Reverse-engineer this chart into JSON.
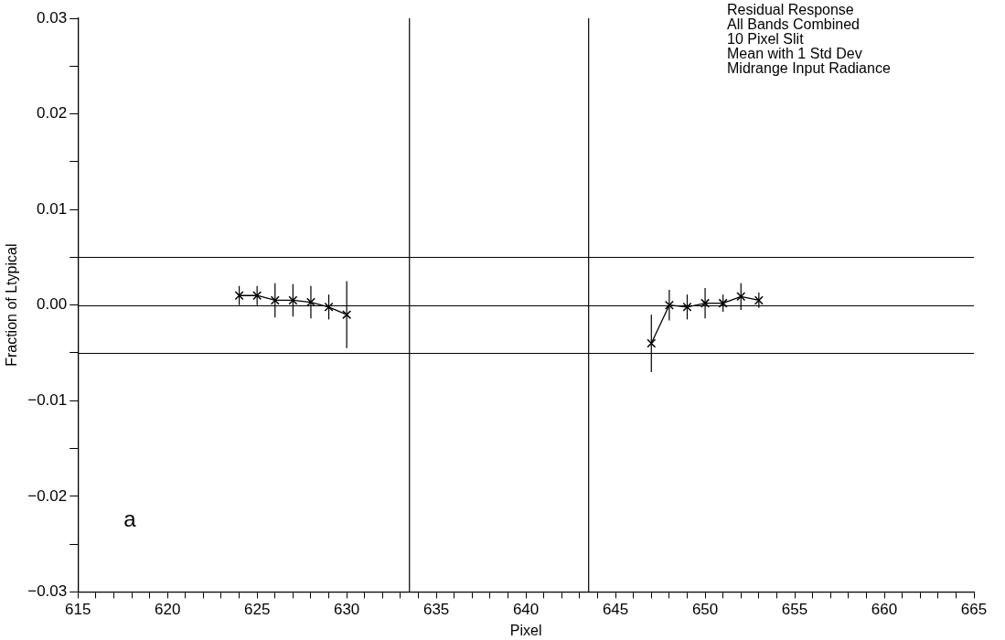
{
  "chart_data": {
    "type": "line",
    "xlabel": "Pixel",
    "ylabel": "Fraction of Ltypical",
    "annotations": [
      "Residual Response",
      "All Bands Combined",
      "10 Pixel Slit",
      "Mean with 1 Std Dev",
      "Midrange Input Radiance",
      "a"
    ],
    "series": [
      {
        "color": "#000000",
        "x": [
          624,
          625,
          626,
          627,
          628,
          629,
          630
        ],
        "values": [
          0.001,
          0.001,
          0.0005,
          0.0005,
          0.0003,
          -0.0002,
          -0.001
        ],
        "errors": [
          0.001,
          0.001,
          0.0018,
          0.0017,
          0.0017,
          0.0013,
          0.0035
        ]
      },
      {
        "color": "#000000",
        "x": [
          647,
          648,
          649,
          650,
          651,
          652,
          653
        ],
        "values": [
          -0.004,
          0.0,
          -0.0002,
          0.0002,
          0.0002,
          0.0009,
          0.0005
        ],
        "errors": [
          0.003,
          0.0016,
          0.0013,
          0.0016,
          0.0009,
          0.0014,
          0.0008
        ]
      }
    ],
    "marker": "cross",
    "line_style": "solid",
    "grid": false,
    "legend": false,
    "xlim": [
      615,
      665
    ],
    "ylim": [
      -0.03,
      0.03
    ],
    "xticks": [
      615,
      {
        "value": 616,
        "label": null
      },
      {
        "value": 617,
        "label": null
      },
      {
        "value": 618,
        "label": null
      },
      {
        "value": 619,
        "label": null
      },
      620,
      {
        "value": 621,
        "label": null
      },
      {
        "value": 622,
        "label": null
      },
      {
        "value": 623,
        "label": null
      },
      {
        "value": 624,
        "label": null
      },
      625,
      {
        "value": 626,
        "label": null
      },
      {
        "value": 627,
        "label": null
      },
      {
        "value": 628,
        "label": null
      },
      {
        "value": 629,
        "label": null
      },
      630,
      {
        "value": 631,
        "label": null
      },
      {
        "value": 632,
        "label": null
      },
      {
        "value": 633,
        "label": null
      },
      {
        "value": 634,
        "label": null
      },
      635,
      {
        "value": 636,
        "label": null
      },
      {
        "value": 637,
        "label": null
      },
      {
        "value": 638,
        "label": null
      },
      {
        "value": 639,
        "label": null
      },
      640,
      {
        "value": 641,
        "label": null
      },
      {
        "value": 642,
        "label": null
      },
      {
        "value": 643,
        "label": null
      },
      {
        "value": 644,
        "label": null
      },
      645,
      {
        "value": 646,
        "label": null
      },
      {
        "value": 647,
        "label": null
      },
      {
        "value": 648,
        "label": null
      },
      {
        "value": 649,
        "label": null
      },
      650,
      {
        "value": 651,
        "label": null
      },
      {
        "value": 652,
        "label": null
      },
      {
        "value": 653,
        "label": null
      },
      {
        "value": 654,
        "label": null
      },
      655,
      {
        "value": 656,
        "label": null
      },
      {
        "value": 657,
        "label": null
      },
      {
        "value": 658,
        "label": null
      },
      {
        "value": 659,
        "label": null
      },
      660,
      {
        "value": 661,
        "label": null
      },
      {
        "value": 662,
        "label": null
      },
      {
        "value": 663,
        "label": null
      },
      {
        "value": 664,
        "label": null
      },
      665
    ],
    "yticks": [
      {
        "value": -0.03,
        "label": "−0.03"
      },
      {
        "value": -0.025,
        "label": null
      },
      {
        "value": -0.02,
        "label": "−0.02"
      },
      {
        "value": -0.015,
        "label": null
      },
      {
        "value": -0.01,
        "label": "−0.01"
      },
      {
        "value": -0.005,
        "label": null
      },
      {
        "value": 0,
        "label": "0.00"
      },
      {
        "value": 0.005,
        "label": null
      },
      0.01,
      {
        "value": 0.015,
        "label": null
      },
      0.02,
      {
        "value": 0.025,
        "label": null
      },
      0.03
    ],
    "ref_lines": [
      {
        "axis": "x",
        "value": 633.5,
        "label": null
      },
      {
        "axis": "x",
        "value": 643.5,
        "label": null
      },
      {
        "axis": "y",
        "value": 0.005,
        "label": null
      },
      {
        "axis": "y",
        "value": 0,
        "label": null
      },
      {
        "axis": "y",
        "value": -0.005,
        "label": null
      }
    ]
  }
}
